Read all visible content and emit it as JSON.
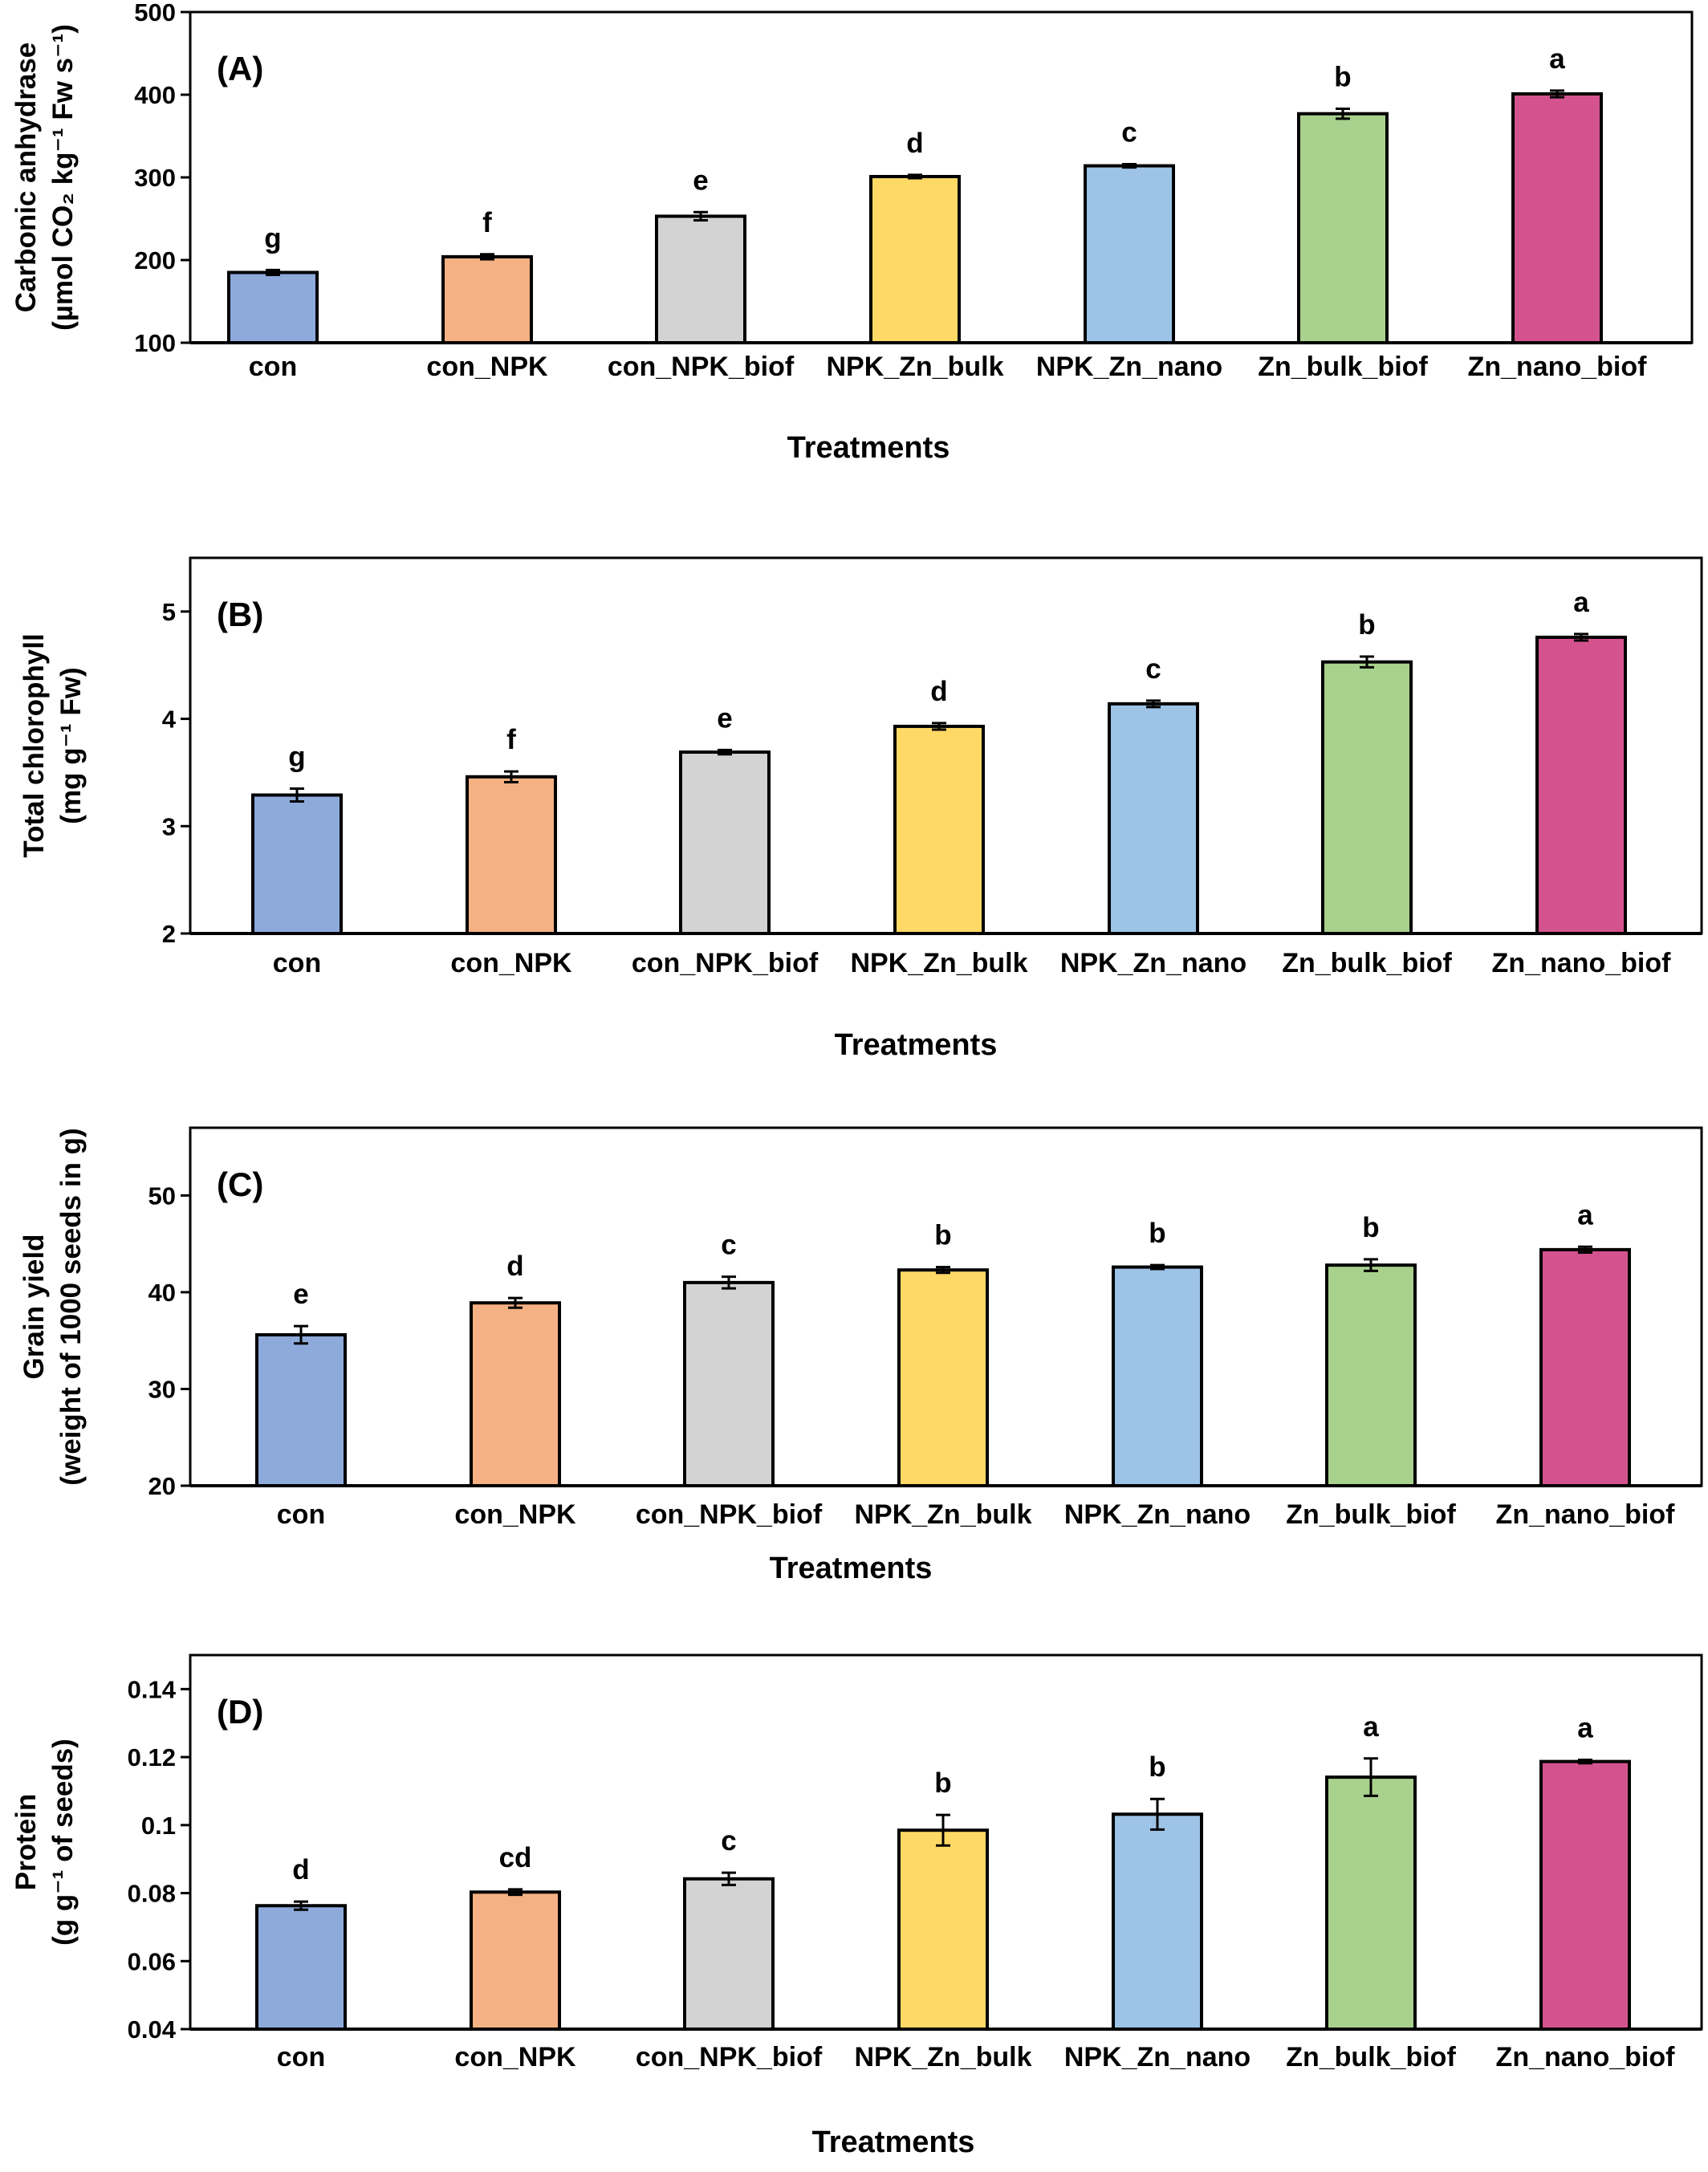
{
  "colors": [
    "#8eaadb",
    "#f4b183",
    "#d3d3d3",
    "#ffd966",
    "#9dc3e6",
    "#a9d18e",
    "#d4538f"
  ],
  "chart_data": [
    {
      "type": "bar",
      "panel_label": "(A)",
      "ylabel_lines": [
        "Carbonic anhydrase",
        "(µmol CO₂ kg⁻¹ Fw s⁻¹)"
      ],
      "xlabel": "Treatments",
      "categories": [
        "con",
        "con_NPK",
        "con_NPK_biof",
        "NPK_Zn_bulk",
        "NPK_Zn_nano",
        "Zn_bulk_biof",
        "Zn_nano_biof"
      ],
      "values": [
        185,
        204,
        253,
        301,
        314,
        377,
        401
      ],
      "errors": [
        3,
        3,
        5,
        2,
        2,
        6,
        4
      ],
      "letters": [
        "g",
        "f",
        "e",
        "d",
        "c",
        "b",
        "a"
      ],
      "ylim": [
        100,
        500
      ],
      "yticks": [
        100,
        200,
        300,
        400,
        500
      ],
      "ytick_labels": [
        "100",
        "200",
        "300",
        "400",
        "500"
      ],
      "grid": false
    },
    {
      "type": "bar",
      "panel_label": "(B)",
      "ylabel_lines": [
        "Total chlorophyll",
        "(mg g⁻¹ Fw)"
      ],
      "xlabel": "Treatments",
      "categories": [
        "con",
        "con_NPK",
        "con_NPK_biof",
        "NPK_Zn_bulk",
        "NPK_Zn_nano",
        "Zn_bulk_biof",
        "Zn_nano_biof"
      ],
      "values": [
        3.29,
        3.46,
        3.69,
        3.93,
        4.14,
        4.53,
        4.76
      ],
      "errors": [
        0.06,
        0.05,
        0.02,
        0.03,
        0.03,
        0.05,
        0.03
      ],
      "letters": [
        "g",
        "f",
        "e",
        "d",
        "c",
        "b",
        "a"
      ],
      "ylim": [
        2,
        5.5
      ],
      "yticks": [
        2,
        3,
        4,
        5
      ],
      "ytick_labels": [
        "2",
        "3",
        "4",
        "5"
      ],
      "grid": false
    },
    {
      "type": "bar",
      "panel_label": "(C)",
      "ylabel_lines": [
        "Grain yield",
        "(weight of 1000 seeds in g)"
      ],
      "xlabel": "Treatments",
      "categories": [
        "con",
        "con_NPK",
        "con_NPK_biof",
        "NPK_Zn_bulk",
        "NPK_Zn_nano",
        "Zn_bulk_biof",
        "Zn_nano_biof"
      ],
      "values": [
        35.6,
        38.9,
        41.0,
        42.3,
        42.6,
        42.8,
        44.4
      ],
      "errors": [
        0.9,
        0.5,
        0.6,
        0.3,
        0.2,
        0.6,
        0.3
      ],
      "letters": [
        "e",
        "d",
        "c",
        "b",
        "b",
        "b",
        "a"
      ],
      "ylim": [
        20,
        57
      ],
      "yticks": [
        20,
        30,
        40,
        50
      ],
      "ytick_labels": [
        "20",
        "30",
        "40",
        "50"
      ],
      "grid": false
    },
    {
      "type": "bar",
      "panel_label": "(D)",
      "ylabel_lines": [
        "Protein",
        "(g g⁻¹ of seeds)"
      ],
      "xlabel": "Treatments",
      "categories": [
        "con",
        "con_NPK",
        "con_NPK_biof",
        "NPK_Zn_bulk",
        "NPK_Zn_nano",
        "Zn_bulk_biof",
        "Zn_nano_biof"
      ],
      "values": [
        0.0763,
        0.0803,
        0.0842,
        0.0985,
        0.1032,
        0.1141,
        0.1187
      ],
      "errors": [
        0.0012,
        0.0008,
        0.0018,
        0.0045,
        0.0045,
        0.0055,
        0.0005
      ],
      "letters": [
        "d",
        "cd",
        "c",
        "b",
        "b",
        "a",
        "a"
      ],
      "ylim": [
        0.04,
        0.15
      ],
      "yticks": [
        0.04,
        0.06,
        0.08,
        0.1,
        0.12,
        0.14
      ],
      "ytick_labels": [
        "0.04",
        "0.06",
        "0.08",
        "0.1",
        "0.12",
        "0.14"
      ],
      "grid": false
    }
  ]
}
